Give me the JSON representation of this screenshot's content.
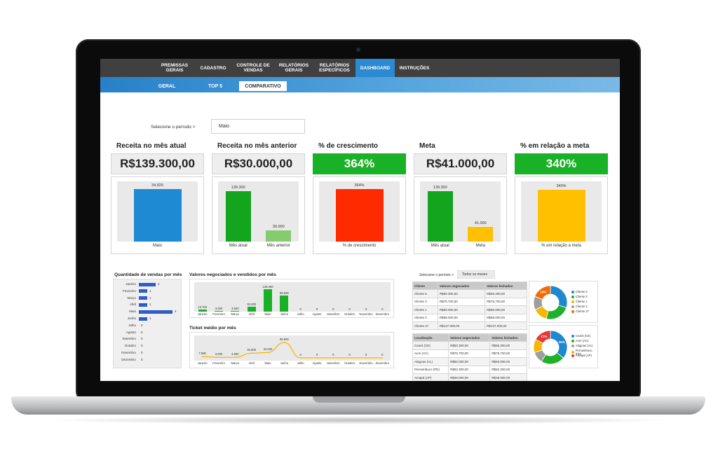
{
  "nav": [
    {
      "label": "PREMISSAS GERAIS",
      "active": false
    },
    {
      "label": "CADASTRO",
      "active": false
    },
    {
      "label": "CONTROLE DE VENDAS",
      "active": false
    },
    {
      "label": "RELATÓRIOS GERAIS",
      "active": false
    },
    {
      "label": "RELATÓRIOS ESPECÍFICOS",
      "active": false
    },
    {
      "label": "DASHBOARD",
      "active": true
    },
    {
      "label": "INSTRUÇÕES",
      "active": false
    }
  ],
  "subnav": [
    {
      "label": "GERAL",
      "active": false
    },
    {
      "label": "TOP 5",
      "active": false
    },
    {
      "label": "COMPARATIVO",
      "active": true
    }
  ],
  "period": {
    "label": "Selecione o período >",
    "value": "Maio"
  },
  "kpis": [
    {
      "title": "Receita no mês atual",
      "value": "R$139.300,00",
      "style": "gray"
    },
    {
      "title": "Receita no mês anterior",
      "value": "R$30.000,00",
      "style": "gray"
    },
    {
      "title": "% de crescimento",
      "value": "364%",
      "style": "green"
    },
    {
      "title": "Meta",
      "value": "R$41.000,00",
      "style": "gray"
    },
    {
      "title": "% em relação a meta",
      "value": "340%",
      "style": "green"
    }
  ],
  "chart_data": [
    {
      "type": "bar",
      "categories": [
        "Maio"
      ],
      "values": [
        34825
      ],
      "value_labels": [
        "34.825"
      ],
      "colors": [
        "#1f8ad4"
      ],
      "ylim": [
        0,
        36000
      ]
    },
    {
      "type": "bar",
      "categories": [
        "Mês atual",
        "Mês anterior"
      ],
      "values": [
        139300,
        30000
      ],
      "value_labels": [
        "139.300",
        "30.000"
      ],
      "colors": [
        "#12a51d",
        "#86cc6f"
      ],
      "ylim": [
        0,
        150000
      ]
    },
    {
      "type": "bar",
      "categories": [
        "% de crescimento"
      ],
      "values": [
        364
      ],
      "value_labels": [
        "364%"
      ],
      "colors": [
        "#ff2a00"
      ],
      "ylim": [
        0,
        380
      ]
    },
    {
      "type": "bar",
      "categories": [
        "Mês atual",
        "Meta"
      ],
      "values": [
        139300,
        41000
      ],
      "value_labels": [
        "139.300",
        "41.000"
      ],
      "colors": [
        "#12a51d",
        "#ffc000"
      ],
      "ylim": [
        0,
        150000
      ]
    },
    {
      "type": "bar",
      "categories": [
        "% em relação a meta"
      ],
      "values": [
        340
      ],
      "value_labels": [
        "340%"
      ],
      "colors": [
        "#ffc000"
      ],
      "ylim": [
        0,
        360
      ]
    },
    {
      "type": "bar",
      "orientation": "horizontal",
      "title": "Quantidade de vendas por mês",
      "categories": [
        "Janeiro",
        "Fevereiro",
        "Março",
        "Abril",
        "Maio",
        "Junho",
        "Julho",
        "Agosto",
        "Setembro",
        "Outubro",
        "Novembro",
        "Dezembro"
      ],
      "values": [
        2,
        1,
        1,
        1,
        4,
        1,
        0,
        0,
        0,
        0,
        0,
        0
      ],
      "color": "#2e5cc8",
      "xlim": [
        0,
        4
      ]
    },
    {
      "type": "bar",
      "title": "Valores negociados e vendidos por mês",
      "categories": [
        "Janeiro",
        "Fevereiro",
        "Março",
        "Abril",
        "Maio",
        "Junho",
        "Julho",
        "Agosto",
        "Setembro",
        "Outubro",
        "Novembro",
        "Dezembro"
      ],
      "series": [
        {
          "values": [
            13700,
            3000,
            3500,
            30000,
            139300,
            99600,
            0,
            0,
            0,
            0,
            0,
            0
          ]
        }
      ],
      "value_labels": [
        "13.700",
        "3.000",
        "3.500",
        "30.000",
        "139.300",
        "99.600",
        "0",
        "0",
        "0",
        "0",
        "0",
        "0"
      ],
      "color": "#19b126",
      "ylim": [
        0,
        140000
      ]
    },
    {
      "type": "line",
      "title": "Ticket médio por mês",
      "categories": [
        "Janeiro",
        "Fevereiro",
        "Março",
        "Abril",
        "Maio",
        "Junho",
        "Julho",
        "Agosto",
        "Setembro",
        "Outubro",
        "Novembro",
        "Dezembro"
      ],
      "values": [
        7650,
        3000,
        3500,
        30000,
        34825,
        99600,
        0,
        0,
        0,
        0,
        0,
        0
      ],
      "value_labels": [
        "7.650",
        "3.000",
        "3.500",
        "30.000",
        "34.825",
        "99.600",
        "0",
        "0",
        "0",
        "0",
        "0",
        "0"
      ],
      "color": "#f5b800",
      "ylim": [
        0,
        100000
      ]
    },
    {
      "type": "pie",
      "subtype": "donut",
      "labels": [
        "Cliente 5",
        "Cliente 3",
        "Cliente 1",
        "Cliente 2",
        "Cliente 27"
      ],
      "values": [
        30,
        24,
        14,
        13,
        19
      ],
      "value_labels": [
        "",
        "",
        "",
        "",
        "19%"
      ],
      "colors": [
        "#1e88d0",
        "#20b02c",
        "#f5b800",
        "#9e9e9e",
        "#f56a00"
      ]
    },
    {
      "type": "pie",
      "subtype": "donut",
      "labels": [
        "Ceará (CE)",
        "Acre (AC)",
        "Alagoas (AL)",
        "Pernambuco (PE)",
        "Amapá (AP)"
      ],
      "values": [
        36,
        23,
        11,
        13,
        17
      ],
      "value_labels": [
        "36%",
        "",
        "",
        "",
        "17%"
      ],
      "colors": [
        "#1e88d0",
        "#20b02c",
        "#9e9e9e",
        "#f5b800",
        "#e53935"
      ]
    }
  ],
  "filter2": {
    "label": "Selecione o período >",
    "value": "Todos os meses"
  },
  "table1": {
    "headers": [
      "Cliente",
      "Valores negociados",
      "Valores fechados"
    ],
    "rows": [
      [
        "Cliente 5",
        "R$50.300,00",
        "R$56.300,00"
      ],
      [
        "Cliente 3",
        "R$75.700,00",
        "R$75.700,00"
      ],
      [
        "Cliente 1",
        "R$50.000,00",
        "R$56.000,00"
      ],
      [
        "Cliente 2",
        "R$58.000,00",
        "R$58.000,00"
      ],
      [
        "Cliente 27",
        "R$137.000,00",
        "R$137.000,00"
      ]
    ]
  },
  "table2": {
    "headers": [
      "Localização",
      "Valores negociados",
      "Valores fechados"
    ],
    "rows": [
      [
        "Ceará (CE)",
        "R$50.300,00",
        "R$56.300,00"
      ],
      [
        "Acre (AC)",
        "R$75.700,00",
        "R$75.700,00"
      ],
      [
        "Alagoas (AL)",
        "R$50.000,00",
        "R$56.000,00"
      ],
      [
        "Pernambuco (PE)",
        "R$52.300,00",
        "R$52.300,00"
      ],
      [
        "Amapá (AP)",
        "R$35.000,00",
        "R$35.000,00"
      ]
    ]
  }
}
